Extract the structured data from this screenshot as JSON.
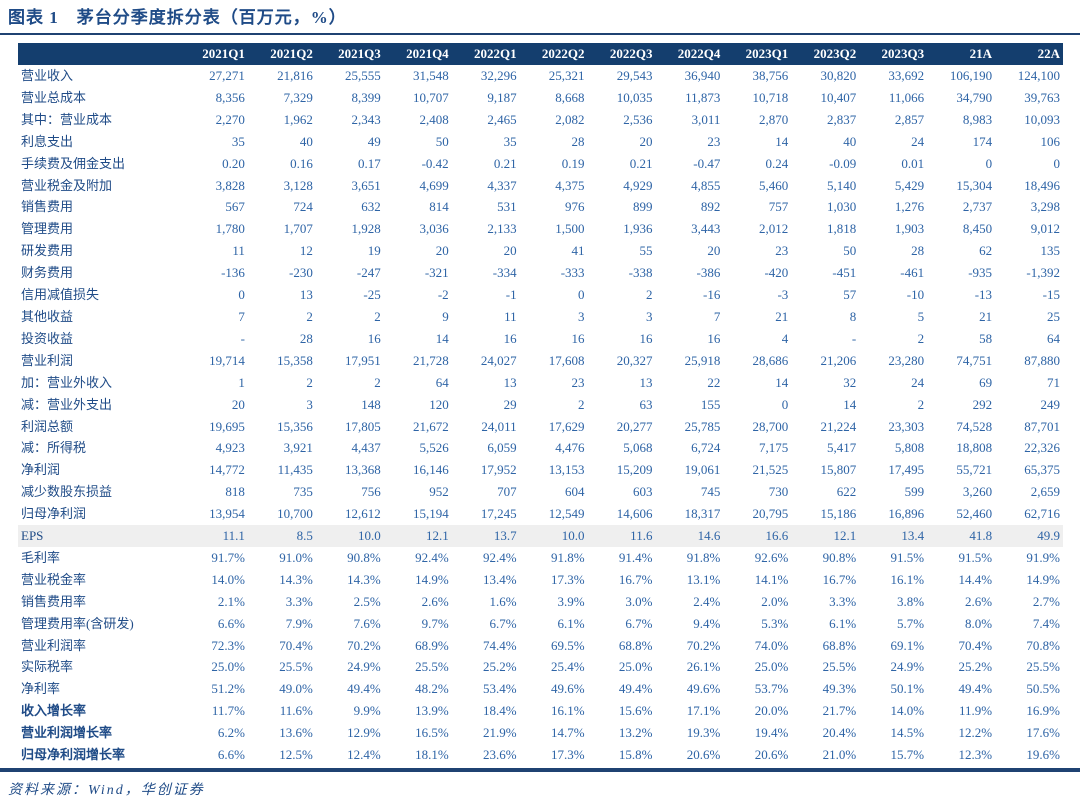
{
  "title": "图表 1　茅台分季度拆分表（百万元，%）",
  "source_note": "资料来源：Wind，华创证券",
  "colors": {
    "header_bg": "#143E6E",
    "header_text": "#FFFFFF",
    "value_text": "#2E64A6",
    "label_text": "#1F4B87",
    "shaded_row_bg": "#EFEFEF",
    "rule": "#1F4272"
  },
  "table": {
    "columns": [
      "2021Q1",
      "2021Q2",
      "2021Q3",
      "2021Q4",
      "2022Q1",
      "2022Q2",
      "2022Q3",
      "2022Q4",
      "2023Q1",
      "2023Q2",
      "2023Q3",
      "21A",
      "22A"
    ],
    "rows": [
      {
        "label": "营业收入",
        "values": [
          "27,271",
          "21,816",
          "25,555",
          "31,548",
          "32,296",
          "25,321",
          "29,543",
          "36,940",
          "38,756",
          "30,820",
          "33,692",
          "106,190",
          "124,100"
        ],
        "shaded": false,
        "bold_label": false
      },
      {
        "label": "营业总成本",
        "values": [
          "8,356",
          "7,329",
          "8,399",
          "10,707",
          "9,187",
          "8,668",
          "10,035",
          "11,873",
          "10,718",
          "10,407",
          "11,066",
          "34,790",
          "39,763"
        ],
        "shaded": false,
        "bold_label": false
      },
      {
        "label": "其中：营业成本",
        "values": [
          "2,270",
          "1,962",
          "2,343",
          "2,408",
          "2,465",
          "2,082",
          "2,536",
          "3,011",
          "2,870",
          "2,837",
          "2,857",
          "8,983",
          "10,093"
        ],
        "shaded": false,
        "bold_label": false
      },
      {
        "label": "利息支出",
        "values": [
          "35",
          "40",
          "49",
          "50",
          "35",
          "28",
          "20",
          "23",
          "14",
          "40",
          "24",
          "174",
          "106"
        ],
        "shaded": false,
        "bold_label": false
      },
      {
        "label": "手续费及佣金支出",
        "values": [
          "0.20",
          "0.16",
          "0.17",
          "-0.42",
          "0.21",
          "0.19",
          "0.21",
          "-0.47",
          "0.24",
          "-0.09",
          "0.01",
          "0",
          "0"
        ],
        "shaded": false,
        "bold_label": false
      },
      {
        "label": "营业税金及附加",
        "values": [
          "3,828",
          "3,128",
          "3,651",
          "4,699",
          "4,337",
          "4,375",
          "4,929",
          "4,855",
          "5,460",
          "5,140",
          "5,429",
          "15,304",
          "18,496"
        ],
        "shaded": false,
        "bold_label": false
      },
      {
        "label": "销售费用",
        "values": [
          "567",
          "724",
          "632",
          "814",
          "531",
          "976",
          "899",
          "892",
          "757",
          "1,030",
          "1,276",
          "2,737",
          "3,298"
        ],
        "shaded": false,
        "bold_label": false
      },
      {
        "label": "管理费用",
        "values": [
          "1,780",
          "1,707",
          "1,928",
          "3,036",
          "2,133",
          "1,500",
          "1,936",
          "3,443",
          "2,012",
          "1,818",
          "1,903",
          "8,450",
          "9,012"
        ],
        "shaded": false,
        "bold_label": false
      },
      {
        "label": "研发费用",
        "values": [
          "11",
          "12",
          "19",
          "20",
          "20",
          "41",
          "55",
          "20",
          "23",
          "50",
          "28",
          "62",
          "135"
        ],
        "shaded": false,
        "bold_label": false
      },
      {
        "label": "财务费用",
        "values": [
          "-136",
          "-230",
          "-247",
          "-321",
          "-334",
          "-333",
          "-338",
          "-386",
          "-420",
          "-451",
          "-461",
          "-935",
          "-1,392"
        ],
        "shaded": false,
        "bold_label": false
      },
      {
        "label": "信用减值损失",
        "values": [
          "0",
          "13",
          "-25",
          "-2",
          "-1",
          "0",
          "2",
          "-16",
          "-3",
          "57",
          "-10",
          "-13",
          "-15"
        ],
        "shaded": false,
        "bold_label": false
      },
      {
        "label": "其他收益",
        "values": [
          "7",
          "2",
          "2",
          "9",
          "11",
          "3",
          "3",
          "7",
          "21",
          "8",
          "5",
          "21",
          "25"
        ],
        "shaded": false,
        "bold_label": false
      },
      {
        "label": "投资收益",
        "values": [
          "-",
          "28",
          "16",
          "14",
          "16",
          "16",
          "16",
          "16",
          "4",
          "-",
          "2",
          "58",
          "64"
        ],
        "shaded": false,
        "bold_label": false
      },
      {
        "label": "营业利润",
        "values": [
          "19,714",
          "15,358",
          "17,951",
          "21,728",
          "24,027",
          "17,608",
          "20,327",
          "25,918",
          "28,686",
          "21,206",
          "23,280",
          "74,751",
          "87,880"
        ],
        "shaded": false,
        "bold_label": false
      },
      {
        "label": "加：营业外收入",
        "values": [
          "1",
          "2",
          "2",
          "64",
          "13",
          "23",
          "13",
          "22",
          "14",
          "32",
          "24",
          "69",
          "71"
        ],
        "shaded": false,
        "bold_label": false
      },
      {
        "label": "减：营业外支出",
        "values": [
          "20",
          "3",
          "148",
          "120",
          "29",
          "2",
          "63",
          "155",
          "0",
          "14",
          "2",
          "292",
          "249"
        ],
        "shaded": false,
        "bold_label": false
      },
      {
        "label": "利润总额",
        "values": [
          "19,695",
          "15,356",
          "17,805",
          "21,672",
          "24,011",
          "17,629",
          "20,277",
          "25,785",
          "28,700",
          "21,224",
          "23,303",
          "74,528",
          "87,701"
        ],
        "shaded": false,
        "bold_label": false
      },
      {
        "label": "减：所得税",
        "values": [
          "4,923",
          "3,921",
          "4,437",
          "5,526",
          "6,059",
          "4,476",
          "5,068",
          "6,724",
          "7,175",
          "5,417",
          "5,808",
          "18,808",
          "22,326"
        ],
        "shaded": false,
        "bold_label": false
      },
      {
        "label": "净利润",
        "values": [
          "14,772",
          "11,435",
          "13,368",
          "16,146",
          "17,952",
          "13,153",
          "15,209",
          "19,061",
          "21,525",
          "15,807",
          "17,495",
          "55,721",
          "65,375"
        ],
        "shaded": false,
        "bold_label": false
      },
      {
        "label": "减少数股东损益",
        "values": [
          "818",
          "735",
          "756",
          "952",
          "707",
          "604",
          "603",
          "745",
          "730",
          "622",
          "599",
          "3,260",
          "2,659"
        ],
        "shaded": false,
        "bold_label": false
      },
      {
        "label": "归母净利润",
        "values": [
          "13,954",
          "10,700",
          "12,612",
          "15,194",
          "17,245",
          "12,549",
          "14,606",
          "18,317",
          "20,795",
          "15,186",
          "16,896",
          "52,460",
          "62,716"
        ],
        "shaded": false,
        "bold_label": false
      },
      {
        "label": "EPS",
        "values": [
          "11.1",
          "8.5",
          "10.0",
          "12.1",
          "13.7",
          "10.0",
          "11.6",
          "14.6",
          "16.6",
          "12.1",
          "13.4",
          "41.8",
          "49.9"
        ],
        "shaded": true,
        "bold_label": false
      },
      {
        "label": "毛利率",
        "values": [
          "91.7%",
          "91.0%",
          "90.8%",
          "92.4%",
          "92.4%",
          "91.8%",
          "91.4%",
          "91.8%",
          "92.6%",
          "90.8%",
          "91.5%",
          "91.5%",
          "91.9%"
        ],
        "shaded": false,
        "bold_label": false
      },
      {
        "label": "营业税金率",
        "values": [
          "14.0%",
          "14.3%",
          "14.3%",
          "14.9%",
          "13.4%",
          "17.3%",
          "16.7%",
          "13.1%",
          "14.1%",
          "16.7%",
          "16.1%",
          "14.4%",
          "14.9%"
        ],
        "shaded": false,
        "bold_label": false
      },
      {
        "label": "销售费用率",
        "values": [
          "2.1%",
          "3.3%",
          "2.5%",
          "2.6%",
          "1.6%",
          "3.9%",
          "3.0%",
          "2.4%",
          "2.0%",
          "3.3%",
          "3.8%",
          "2.6%",
          "2.7%"
        ],
        "shaded": false,
        "bold_label": false
      },
      {
        "label": "管理费用率(含研发)",
        "values": [
          "6.6%",
          "7.9%",
          "7.6%",
          "9.7%",
          "6.7%",
          "6.1%",
          "6.7%",
          "9.4%",
          "5.3%",
          "6.1%",
          "5.7%",
          "8.0%",
          "7.4%"
        ],
        "shaded": false,
        "bold_label": false
      },
      {
        "label": "营业利润率",
        "values": [
          "72.3%",
          "70.4%",
          "70.2%",
          "68.9%",
          "74.4%",
          "69.5%",
          "68.8%",
          "70.2%",
          "74.0%",
          "68.8%",
          "69.1%",
          "70.4%",
          "70.8%"
        ],
        "shaded": false,
        "bold_label": false
      },
      {
        "label": "实际税率",
        "values": [
          "25.0%",
          "25.5%",
          "24.9%",
          "25.5%",
          "25.2%",
          "25.4%",
          "25.0%",
          "26.1%",
          "25.0%",
          "25.5%",
          "24.9%",
          "25.2%",
          "25.5%"
        ],
        "shaded": false,
        "bold_label": false
      },
      {
        "label": "净利率",
        "values": [
          "51.2%",
          "49.0%",
          "49.4%",
          "48.2%",
          "53.4%",
          "49.6%",
          "49.4%",
          "49.6%",
          "53.7%",
          "49.3%",
          "50.1%",
          "49.4%",
          "50.5%"
        ],
        "shaded": false,
        "bold_label": false
      },
      {
        "label": "收入增长率",
        "values": [
          "11.7%",
          "11.6%",
          "9.9%",
          "13.9%",
          "18.4%",
          "16.1%",
          "15.6%",
          "17.1%",
          "20.0%",
          "21.7%",
          "14.0%",
          "11.9%",
          "16.9%"
        ],
        "shaded": false,
        "bold_label": true
      },
      {
        "label": "营业利润增长率",
        "values": [
          "6.2%",
          "13.6%",
          "12.9%",
          "16.5%",
          "21.9%",
          "14.7%",
          "13.2%",
          "19.3%",
          "19.4%",
          "20.4%",
          "14.5%",
          "12.2%",
          "17.6%"
        ],
        "shaded": false,
        "bold_label": true
      },
      {
        "label": "归母净利润增长率",
        "values": [
          "6.6%",
          "12.5%",
          "12.4%",
          "18.1%",
          "23.6%",
          "17.3%",
          "15.8%",
          "20.6%",
          "20.6%",
          "21.0%",
          "15.7%",
          "12.3%",
          "19.6%"
        ],
        "shaded": false,
        "bold_label": true
      }
    ]
  }
}
